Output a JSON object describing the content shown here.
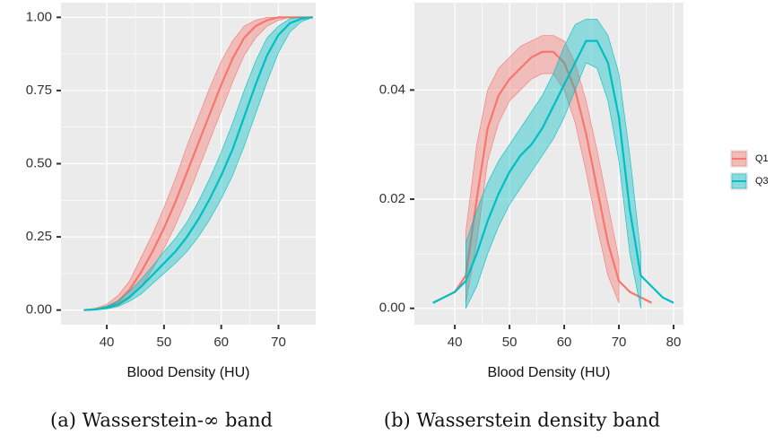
{
  "chart_data": [
    {
      "type": "line",
      "x_label": "Blood Density (HU)",
      "caption": "(a) Wasserstein-∞ band",
      "x": [
        36,
        38,
        40,
        42,
        44,
        46,
        48,
        50,
        52,
        54,
        56,
        58,
        60,
        62,
        64,
        66,
        68,
        70,
        72,
        74,
        76
      ],
      "series": [
        {
          "name": "Q1",
          "color": "#F8766D",
          "values": [
            0,
            0.003,
            0.01,
            0.03,
            0.07,
            0.13,
            0.2,
            0.28,
            0.37,
            0.47,
            0.57,
            0.67,
            0.77,
            0.86,
            0.93,
            0.97,
            0.99,
            1,
            1,
            1,
            1
          ],
          "lower": [
            0,
            0,
            0.005,
            0.015,
            0.04,
            0.08,
            0.14,
            0.21,
            0.29,
            0.38,
            0.48,
            0.58,
            0.68,
            0.78,
            0.87,
            0.93,
            0.97,
            0.99,
            1,
            1,
            1
          ],
          "upper": [
            0,
            0.006,
            0.02,
            0.05,
            0.1,
            0.18,
            0.26,
            0.35,
            0.45,
            0.56,
            0.66,
            0.76,
            0.85,
            0.92,
            0.97,
            0.99,
            1,
            1,
            1,
            1,
            1
          ]
        },
        {
          "name": "Q3",
          "color": "#00BFC4",
          "values": [
            0,
            0.002,
            0.008,
            0.02,
            0.045,
            0.08,
            0.12,
            0.16,
            0.2,
            0.25,
            0.31,
            0.38,
            0.46,
            0.55,
            0.66,
            0.77,
            0.87,
            0.94,
            0.98,
            0.995,
            1
          ],
          "lower": [
            0,
            0,
            0.004,
            0.012,
            0.03,
            0.055,
            0.09,
            0.125,
            0.16,
            0.2,
            0.25,
            0.31,
            0.38,
            0.46,
            0.56,
            0.67,
            0.78,
            0.88,
            0.95,
            0.985,
            1
          ],
          "upper": [
            0,
            0.004,
            0.014,
            0.032,
            0.065,
            0.105,
            0.15,
            0.2,
            0.245,
            0.3,
            0.37,
            0.45,
            0.54,
            0.64,
            0.75,
            0.85,
            0.93,
            0.97,
            0.995,
            1,
            1
          ]
        }
      ],
      "xlim": [
        32,
        76.5
      ],
      "xticks": [
        40,
        50,
        60,
        70
      ],
      "ylim": [
        -0.05,
        1.05
      ],
      "yticks": [
        {
          "value": 0,
          "label": "0.00"
        },
        {
          "value": 0.25,
          "label": "0.25"
        },
        {
          "value": 0.5,
          "label": "0.50"
        },
        {
          "value": 0.75,
          "label": "0.75"
        },
        {
          "value": 1,
          "label": "1.00"
        }
      ],
      "grid": true
    },
    {
      "type": "line",
      "x_label": "Blood Density (HU)",
      "caption": "(b) Wasserstein density band",
      "x": [
        36,
        38,
        40,
        42,
        44,
        46,
        48,
        50,
        52,
        54,
        56,
        58,
        60,
        62,
        64,
        66,
        68,
        70,
        72,
        74,
        76,
        78,
        80
      ],
      "series": [
        {
          "name": "Q1",
          "color": "#F8766D",
          "values": [
            0.001,
            0.002,
            0.003,
            0.006,
            0.02,
            0.033,
            0.039,
            0.042,
            0.044,
            0.046,
            0.047,
            0.047,
            0.045,
            0.04,
            0.032,
            0.022,
            0.012,
            0.005,
            0.003,
            0.002,
            0.001,
            null,
            null
          ],
          "lower": [
            null,
            null,
            null,
            0.001,
            0.012,
            0.027,
            0.034,
            0.038,
            0.04,
            0.042,
            0.043,
            0.043,
            0.04,
            0.034,
            0.025,
            0.015,
            0.006,
            0.001,
            null,
            null,
            null,
            null,
            null
          ],
          "upper": [
            null,
            null,
            null,
            0.014,
            0.03,
            0.04,
            0.044,
            0.046,
            0.048,
            0.049,
            0.05,
            0.05,
            0.049,
            0.045,
            0.038,
            0.029,
            0.019,
            0.009,
            null,
            null,
            null,
            null,
            null
          ]
        },
        {
          "name": "Q3",
          "color": "#00BFC4",
          "values": [
            0.001,
            0.002,
            0.003,
            0.005,
            0.01,
            0.016,
            0.021,
            0.025,
            0.028,
            0.03,
            0.033,
            0.037,
            0.041,
            0.045,
            0.049,
            0.049,
            0.045,
            0.035,
            0.018,
            0.006,
            0.004,
            0.002,
            0.001
          ],
          "lower": [
            null,
            null,
            null,
            0,
            0.004,
            0.01,
            0.015,
            0.019,
            0.022,
            0.025,
            0.028,
            0.031,
            0.035,
            0.04,
            0.045,
            0.044,
            0.038,
            0.027,
            0.01,
            0,
            null,
            null,
            null
          ],
          "upper": [
            null,
            null,
            null,
            0.012,
            0.018,
            0.023,
            0.027,
            0.03,
            0.033,
            0.036,
            0.039,
            0.043,
            0.048,
            0.052,
            0.053,
            0.053,
            0.05,
            0.043,
            0.028,
            0.01,
            null,
            null,
            null
          ]
        }
      ],
      "xlim": [
        32.6,
        81.8
      ],
      "xticks": [
        40,
        50,
        60,
        70,
        80
      ],
      "ylim": [
        -0.003,
        0.056
      ],
      "yticks": [
        {
          "value": 0,
          "label": "0.00"
        },
        {
          "value": 0.02,
          "label": "0.02"
        },
        {
          "value": 0.04,
          "label": "0.04"
        }
      ],
      "grid": true,
      "legend": "right"
    }
  ]
}
